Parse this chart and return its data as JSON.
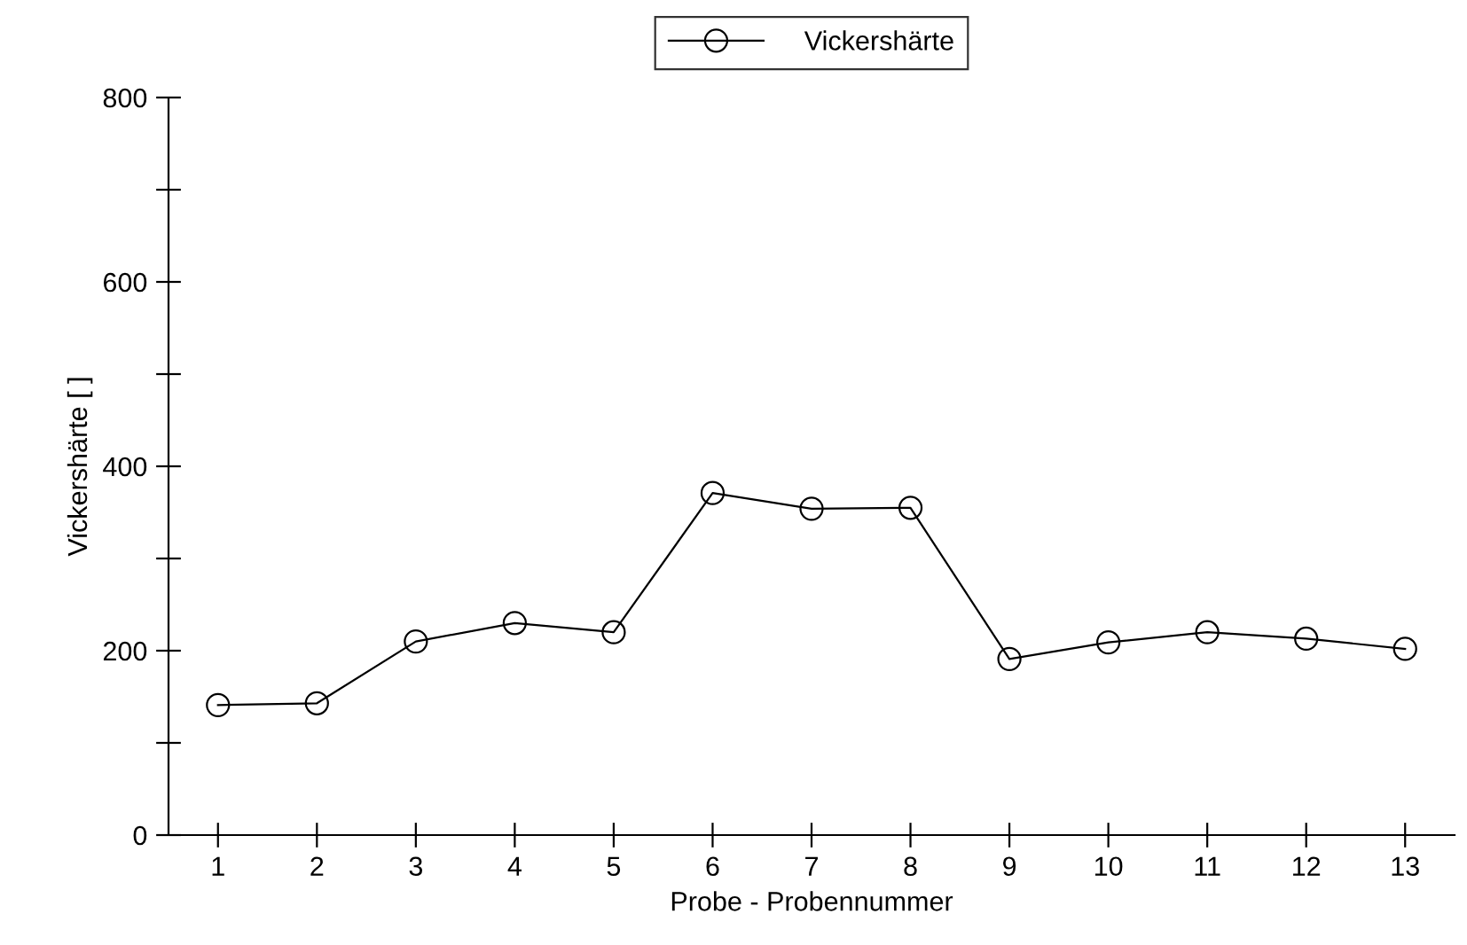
{
  "chart_data": {
    "type": "line",
    "xlabel": "Probe - Probennummer",
    "ylabel": "Vickershärte [ ]",
    "categories": [
      "1",
      "2",
      "3",
      "4",
      "5",
      "6",
      "7",
      "8",
      "9",
      "10",
      "11",
      "12",
      "13"
    ],
    "series": [
      {
        "name": "Vickershärte",
        "color": "#000000",
        "values": [
          141,
          143,
          210,
          230,
          220,
          371,
          354,
          355,
          191,
          209,
          220,
          213,
          202
        ]
      }
    ],
    "ylim": [
      0,
      800
    ],
    "yticks": [
      0,
      {
        "value": 100,
        "label": null
      },
      200,
      {
        "value": 300,
        "label": null
      },
      400,
      {
        "value": 500,
        "label": null
      },
      600,
      {
        "value": 700,
        "label": null
      },
      800
    ],
    "grid": false,
    "legend": "top",
    "marker": "circle",
    "line_style": "solid"
  }
}
